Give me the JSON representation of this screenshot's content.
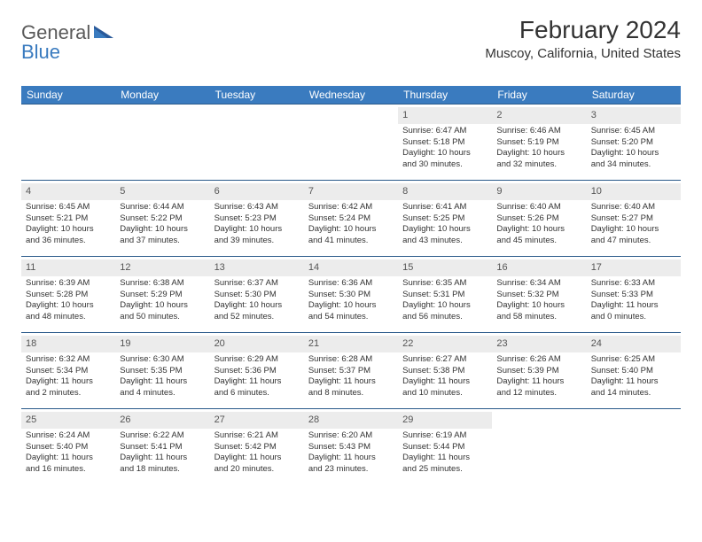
{
  "brand": {
    "word1": "General",
    "word2": "Blue"
  },
  "title": "February 2024",
  "location": "Muscoy, California, United States",
  "colors": {
    "header_bg": "#3a7bbf",
    "header_text": "#ffffff",
    "daynum_bg": "#ececec",
    "row_border": "#2a5a8a",
    "text": "#333333"
  },
  "day_headers": [
    "Sunday",
    "Monday",
    "Tuesday",
    "Wednesday",
    "Thursday",
    "Friday",
    "Saturday"
  ],
  "weeks": [
    [
      null,
      null,
      null,
      null,
      {
        "d": "1",
        "sr": "Sunrise: 6:47 AM",
        "ss": "Sunset: 5:18 PM",
        "dl1": "Daylight: 10 hours",
        "dl2": "and 30 minutes."
      },
      {
        "d": "2",
        "sr": "Sunrise: 6:46 AM",
        "ss": "Sunset: 5:19 PM",
        "dl1": "Daylight: 10 hours",
        "dl2": "and 32 minutes."
      },
      {
        "d": "3",
        "sr": "Sunrise: 6:45 AM",
        "ss": "Sunset: 5:20 PM",
        "dl1": "Daylight: 10 hours",
        "dl2": "and 34 minutes."
      }
    ],
    [
      {
        "d": "4",
        "sr": "Sunrise: 6:45 AM",
        "ss": "Sunset: 5:21 PM",
        "dl1": "Daylight: 10 hours",
        "dl2": "and 36 minutes."
      },
      {
        "d": "5",
        "sr": "Sunrise: 6:44 AM",
        "ss": "Sunset: 5:22 PM",
        "dl1": "Daylight: 10 hours",
        "dl2": "and 37 minutes."
      },
      {
        "d": "6",
        "sr": "Sunrise: 6:43 AM",
        "ss": "Sunset: 5:23 PM",
        "dl1": "Daylight: 10 hours",
        "dl2": "and 39 minutes."
      },
      {
        "d": "7",
        "sr": "Sunrise: 6:42 AM",
        "ss": "Sunset: 5:24 PM",
        "dl1": "Daylight: 10 hours",
        "dl2": "and 41 minutes."
      },
      {
        "d": "8",
        "sr": "Sunrise: 6:41 AM",
        "ss": "Sunset: 5:25 PM",
        "dl1": "Daylight: 10 hours",
        "dl2": "and 43 minutes."
      },
      {
        "d": "9",
        "sr": "Sunrise: 6:40 AM",
        "ss": "Sunset: 5:26 PM",
        "dl1": "Daylight: 10 hours",
        "dl2": "and 45 minutes."
      },
      {
        "d": "10",
        "sr": "Sunrise: 6:40 AM",
        "ss": "Sunset: 5:27 PM",
        "dl1": "Daylight: 10 hours",
        "dl2": "and 47 minutes."
      }
    ],
    [
      {
        "d": "11",
        "sr": "Sunrise: 6:39 AM",
        "ss": "Sunset: 5:28 PM",
        "dl1": "Daylight: 10 hours",
        "dl2": "and 48 minutes."
      },
      {
        "d": "12",
        "sr": "Sunrise: 6:38 AM",
        "ss": "Sunset: 5:29 PM",
        "dl1": "Daylight: 10 hours",
        "dl2": "and 50 minutes."
      },
      {
        "d": "13",
        "sr": "Sunrise: 6:37 AM",
        "ss": "Sunset: 5:30 PM",
        "dl1": "Daylight: 10 hours",
        "dl2": "and 52 minutes."
      },
      {
        "d": "14",
        "sr": "Sunrise: 6:36 AM",
        "ss": "Sunset: 5:30 PM",
        "dl1": "Daylight: 10 hours",
        "dl2": "and 54 minutes."
      },
      {
        "d": "15",
        "sr": "Sunrise: 6:35 AM",
        "ss": "Sunset: 5:31 PM",
        "dl1": "Daylight: 10 hours",
        "dl2": "and 56 minutes."
      },
      {
        "d": "16",
        "sr": "Sunrise: 6:34 AM",
        "ss": "Sunset: 5:32 PM",
        "dl1": "Daylight: 10 hours",
        "dl2": "and 58 minutes."
      },
      {
        "d": "17",
        "sr": "Sunrise: 6:33 AM",
        "ss": "Sunset: 5:33 PM",
        "dl1": "Daylight: 11 hours",
        "dl2": "and 0 minutes."
      }
    ],
    [
      {
        "d": "18",
        "sr": "Sunrise: 6:32 AM",
        "ss": "Sunset: 5:34 PM",
        "dl1": "Daylight: 11 hours",
        "dl2": "and 2 minutes."
      },
      {
        "d": "19",
        "sr": "Sunrise: 6:30 AM",
        "ss": "Sunset: 5:35 PM",
        "dl1": "Daylight: 11 hours",
        "dl2": "and 4 minutes."
      },
      {
        "d": "20",
        "sr": "Sunrise: 6:29 AM",
        "ss": "Sunset: 5:36 PM",
        "dl1": "Daylight: 11 hours",
        "dl2": "and 6 minutes."
      },
      {
        "d": "21",
        "sr": "Sunrise: 6:28 AM",
        "ss": "Sunset: 5:37 PM",
        "dl1": "Daylight: 11 hours",
        "dl2": "and 8 minutes."
      },
      {
        "d": "22",
        "sr": "Sunrise: 6:27 AM",
        "ss": "Sunset: 5:38 PM",
        "dl1": "Daylight: 11 hours",
        "dl2": "and 10 minutes."
      },
      {
        "d": "23",
        "sr": "Sunrise: 6:26 AM",
        "ss": "Sunset: 5:39 PM",
        "dl1": "Daylight: 11 hours",
        "dl2": "and 12 minutes."
      },
      {
        "d": "24",
        "sr": "Sunrise: 6:25 AM",
        "ss": "Sunset: 5:40 PM",
        "dl1": "Daylight: 11 hours",
        "dl2": "and 14 minutes."
      }
    ],
    [
      {
        "d": "25",
        "sr": "Sunrise: 6:24 AM",
        "ss": "Sunset: 5:40 PM",
        "dl1": "Daylight: 11 hours",
        "dl2": "and 16 minutes."
      },
      {
        "d": "26",
        "sr": "Sunrise: 6:22 AM",
        "ss": "Sunset: 5:41 PM",
        "dl1": "Daylight: 11 hours",
        "dl2": "and 18 minutes."
      },
      {
        "d": "27",
        "sr": "Sunrise: 6:21 AM",
        "ss": "Sunset: 5:42 PM",
        "dl1": "Daylight: 11 hours",
        "dl2": "and 20 minutes."
      },
      {
        "d": "28",
        "sr": "Sunrise: 6:20 AM",
        "ss": "Sunset: 5:43 PM",
        "dl1": "Daylight: 11 hours",
        "dl2": "and 23 minutes."
      },
      {
        "d": "29",
        "sr": "Sunrise: 6:19 AM",
        "ss": "Sunset: 5:44 PM",
        "dl1": "Daylight: 11 hours",
        "dl2": "and 25 minutes."
      },
      null,
      null
    ]
  ]
}
